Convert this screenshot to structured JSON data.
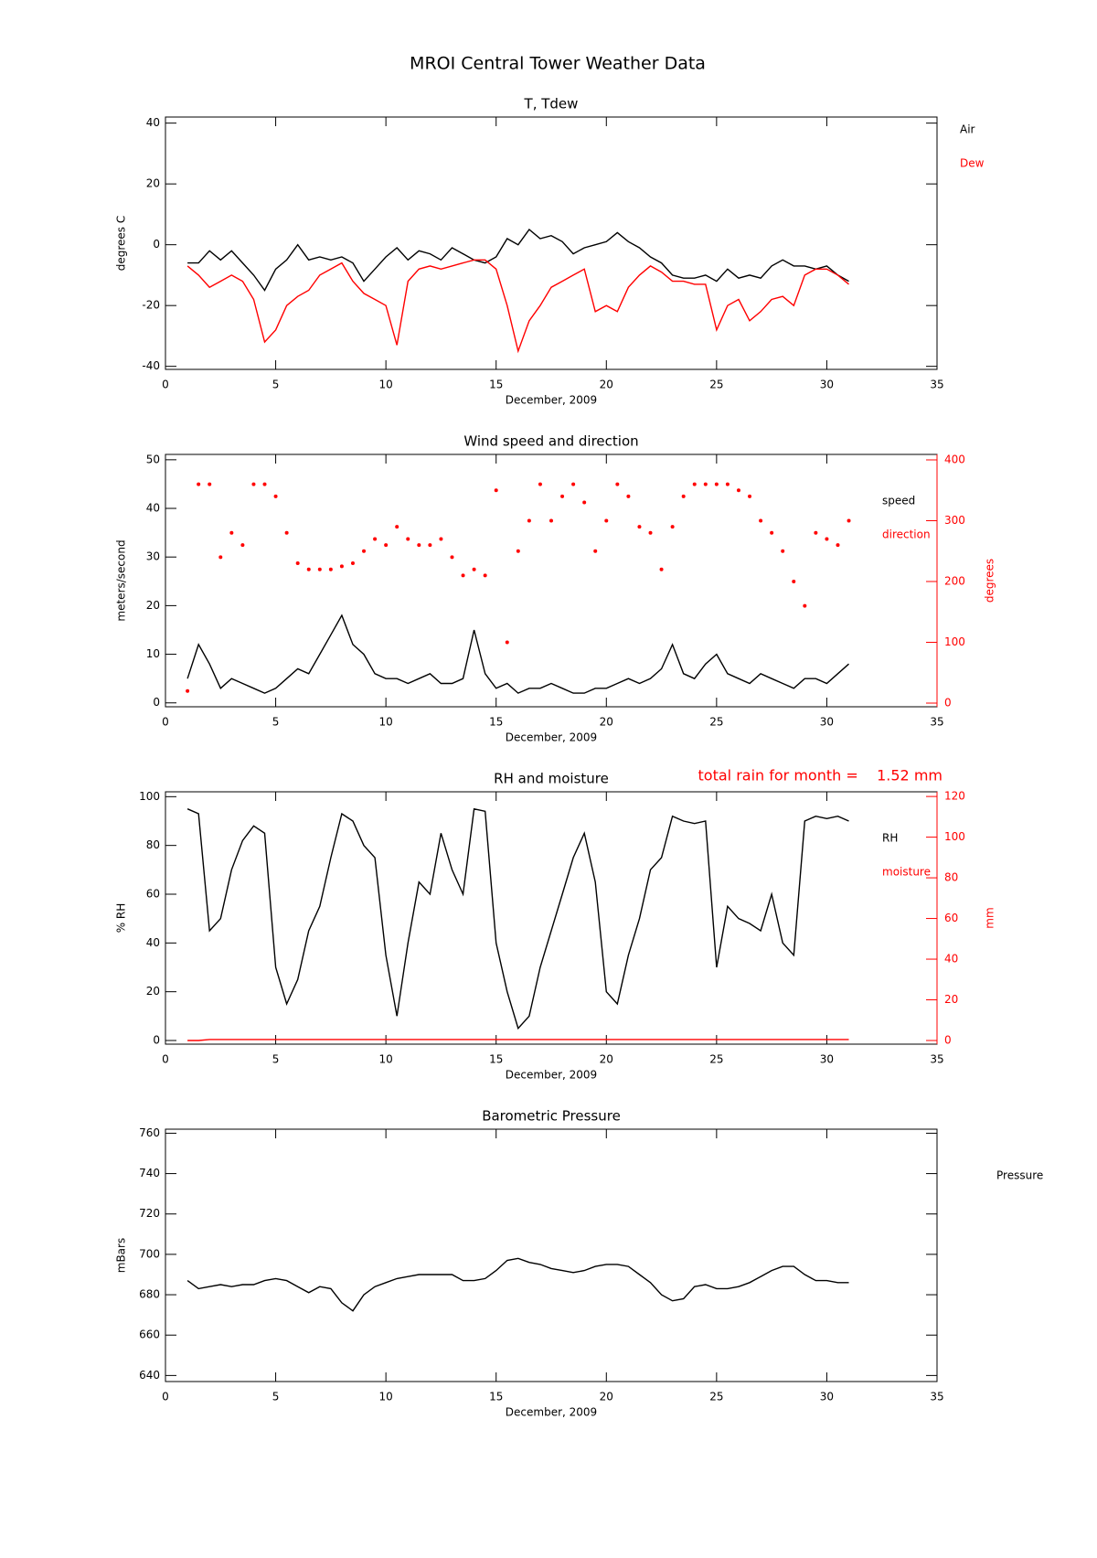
{
  "title": "MROI Central Tower Weather Data",
  "chart_data": [
    {
      "type": "line",
      "title": "T, Tdew",
      "x_label": "December, 2009",
      "y_label": "degrees C",
      "xlim": [
        0,
        35
      ],
      "xticks": [
        0,
        5,
        10,
        15,
        20,
        25,
        30,
        35
      ],
      "ylim": [
        -41,
        42
      ],
      "yticks": [
        -40,
        -20,
        0,
        20,
        40
      ],
      "x": [
        1,
        1.5,
        2,
        2.5,
        3,
        3.5,
        4,
        4.5,
        5,
        5.5,
        6,
        6.5,
        7,
        7.5,
        8,
        8.5,
        9,
        9.5,
        10,
        10.5,
        11,
        11.5,
        12,
        12.5,
        13,
        13.5,
        14,
        14.5,
        15,
        15.5,
        16,
        16.5,
        17,
        17.5,
        18,
        18.5,
        19,
        19.5,
        20,
        20.5,
        21,
        21.5,
        22,
        22.5,
        23,
        23.5,
        24,
        24.5,
        25,
        25.5,
        26,
        26.5,
        27,
        27.5,
        28,
        28.5,
        29,
        29.5,
        30,
        30.5,
        31
      ],
      "series": [
        {
          "name": "Air",
          "color": "#000000",
          "values": [
            -6,
            -6,
            -2,
            -5,
            -2,
            -6,
            -10,
            -15,
            -8,
            -5,
            0,
            -5,
            -4,
            -5,
            -4,
            -6,
            -12,
            -8,
            -4,
            -1,
            -5,
            -2,
            -3,
            -5,
            -1,
            -3,
            -5,
            -6,
            -4,
            2,
            0,
            5,
            2,
            3,
            1,
            -3,
            -1,
            0,
            1,
            4,
            1,
            -1,
            -4,
            -6,
            -10,
            -11,
            -11,
            -10,
            -12,
            -8,
            -11,
            -10,
            -11,
            -7,
            -5,
            -7,
            -7,
            -8,
            -7,
            -10,
            -12
          ]
        },
        {
          "name": "Dew",
          "color": "#ff0000",
          "values": [
            -7,
            -10,
            -14,
            -12,
            -10,
            -12,
            -18,
            -32,
            -28,
            -20,
            -17,
            -15,
            -10,
            -8,
            -6,
            -12,
            -16,
            -18,
            -20,
            -33,
            -12,
            -8,
            -7,
            -8,
            -7,
            -6,
            -5,
            -5,
            -8,
            -20,
            -35,
            -25,
            -20,
            -14,
            -12,
            -10,
            -8,
            -22,
            -20,
            -22,
            -14,
            -10,
            -7,
            -9,
            -12,
            -12,
            -13,
            -13,
            -28,
            -20,
            -18,
            -25,
            -22,
            -18,
            -17,
            -20,
            -10,
            -8,
            -8,
            -10,
            -13
          ]
        }
      ]
    },
    {
      "type": "line",
      "title": "Wind speed and direction",
      "x_label": "December, 2009",
      "y_label": "meters/second",
      "y2_label": "degrees",
      "xlim": [
        0,
        35
      ],
      "xticks": [
        0,
        5,
        10,
        15,
        20,
        25,
        30,
        35
      ],
      "ylim": [
        -0.8,
        51.1
      ],
      "yticks": [
        0,
        10,
        20,
        30,
        40,
        50
      ],
      "y2lim": [
        -6,
        409
      ],
      "y2ticks": [
        0,
        100,
        200,
        300,
        400
      ],
      "x": [
        1,
        1.5,
        2,
        2.5,
        3,
        3.5,
        4,
        4.5,
        5,
        5.5,
        6,
        6.5,
        7,
        7.5,
        8,
        8.5,
        9,
        9.5,
        10,
        10.5,
        11,
        11.5,
        12,
        12.5,
        13,
        13.5,
        14,
        14.5,
        15,
        15.5,
        16,
        16.5,
        17,
        17.5,
        18,
        18.5,
        19,
        19.5,
        20,
        20.5,
        21,
        21.5,
        22,
        22.5,
        23,
        23.5,
        24,
        24.5,
        25,
        25.5,
        26,
        26.5,
        27,
        27.5,
        28,
        28.5,
        29,
        29.5,
        30,
        30.5,
        31
      ],
      "series": [
        {
          "name": "speed",
          "color": "#000000",
          "values": [
            5,
            12,
            8,
            3,
            5,
            4,
            3,
            2,
            3,
            5,
            7,
            6,
            10,
            14,
            18,
            12,
            10,
            6,
            5,
            5,
            4,
            5,
            6,
            4,
            4,
            5,
            15,
            6,
            3,
            4,
            2,
            3,
            3,
            4,
            3,
            2,
            2,
            3,
            3,
            4,
            5,
            4,
            5,
            7,
            12,
            6,
            5,
            8,
            10,
            6,
            5,
            4,
            6,
            5,
            4,
            3,
            5,
            5,
            4,
            6,
            8
          ]
        },
        {
          "name": "direction",
          "color": "#ff0000",
          "axis": "y2",
          "mode": "markers",
          "values": [
            20,
            360,
            360,
            240,
            280,
            260,
            360,
            360,
            340,
            280,
            230,
            220,
            220,
            220,
            225,
            230,
            250,
            270,
            260,
            290,
            270,
            260,
            260,
            270,
            240,
            210,
            220,
            210,
            350,
            100,
            250,
            300,
            360,
            300,
            340,
            360,
            330,
            250,
            300,
            360,
            340,
            290,
            280,
            220,
            290,
            340,
            360,
            360,
            360,
            360,
            350,
            340,
            300,
            280,
            250,
            200,
            160,
            280,
            270,
            260,
            300
          ]
        }
      ]
    },
    {
      "type": "line",
      "title": "RH and moisture",
      "x_label": "December, 2009",
      "y_label": "% RH",
      "y2_label": "mm",
      "annotation": "total rain for month =    1.52 mm",
      "xlim": [
        0,
        35
      ],
      "xticks": [
        0,
        5,
        10,
        15,
        20,
        25,
        30,
        35
      ],
      "ylim": [
        -1.5,
        102
      ],
      "yticks": [
        0,
        20,
        40,
        60,
        80,
        100
      ],
      "y2lim": [
        -1.8,
        122.3
      ],
      "y2ticks": [
        0,
        20,
        40,
        60,
        80,
        100,
        120
      ],
      "x": [
        1,
        1.5,
        2,
        2.5,
        3,
        3.5,
        4,
        4.5,
        5,
        5.5,
        6,
        6.5,
        7,
        7.5,
        8,
        8.5,
        9,
        9.5,
        10,
        10.5,
        11,
        11.5,
        12,
        12.5,
        13,
        13.5,
        14,
        14.5,
        15,
        15.5,
        16,
        16.5,
        17,
        17.5,
        18,
        18.5,
        19,
        19.5,
        20,
        20.5,
        21,
        21.5,
        22,
        22.5,
        23,
        23.5,
        24,
        24.5,
        25,
        25.5,
        26,
        26.5,
        27,
        27.5,
        28,
        28.5,
        29,
        29.5,
        30,
        30.5,
        31
      ],
      "series": [
        {
          "name": "RH",
          "color": "#000000",
          "values": [
            95,
            93,
            45,
            50,
            70,
            82,
            88,
            85,
            30,
            15,
            25,
            45,
            55,
            75,
            93,
            90,
            80,
            75,
            35,
            10,
            40,
            65,
            60,
            85,
            70,
            60,
            95,
            94,
            40,
            20,
            5,
            10,
            30,
            45,
            60,
            75,
            85,
            65,
            20,
            15,
            35,
            50,
            70,
            75,
            92,
            90,
            89,
            90,
            30,
            55,
            50,
            48,
            45,
            60,
            40,
            35,
            90,
            92,
            91,
            92,
            90
          ]
        },
        {
          "name": "moisture",
          "color": "#ff0000",
          "axis": "y2",
          "values": [
            0,
            0,
            0.5,
            0.5,
            0.5,
            0.5,
            0.5,
            0.5,
            0.5,
            0.5,
            0.5,
            0.5,
            0.5,
            0.5,
            0.5,
            0.5,
            0.5,
            0.5,
            0.5,
            0.5,
            0.5,
            0.5,
            0.5,
            0.5,
            0.5,
            0.5,
            0.5,
            0.5,
            0.5,
            0.5,
            0.5,
            0.5,
            0.5,
            0.5,
            0.5,
            0.5,
            0.5,
            0.5,
            0.5,
            0.5,
            0.5,
            0.5,
            0.5,
            0.5,
            0.5,
            0.5,
            0.5,
            0.5,
            0.5,
            0.5,
            0.5,
            0.5,
            0.5,
            0.5,
            0.5,
            0.5,
            0.5,
            0.5,
            0.5,
            0.5,
            0.5
          ]
        }
      ]
    },
    {
      "type": "line",
      "title": "Barometric Pressure",
      "x_label": "December, 2009",
      "y_label": "mBars",
      "xlim": [
        0,
        35
      ],
      "xticks": [
        0,
        5,
        10,
        15,
        20,
        25,
        30,
        35
      ],
      "ylim": [
        637,
        762
      ],
      "yticks": [
        640,
        660,
        680,
        700,
        720,
        740,
        760
      ],
      "x": [
        1,
        1.5,
        2,
        2.5,
        3,
        3.5,
        4,
        4.5,
        5,
        5.5,
        6,
        6.5,
        7,
        7.5,
        8,
        8.5,
        9,
        9.5,
        10,
        10.5,
        11,
        11.5,
        12,
        12.5,
        13,
        13.5,
        14,
        14.5,
        15,
        15.5,
        16,
        16.5,
        17,
        17.5,
        18,
        18.5,
        19,
        19.5,
        20,
        20.5,
        21,
        21.5,
        22,
        22.5,
        23,
        23.5,
        24,
        24.5,
        25,
        25.5,
        26,
        26.5,
        27,
        27.5,
        28,
        28.5,
        29,
        29.5,
        30,
        30.5,
        31
      ],
      "series": [
        {
          "name": "Pressure",
          "color": "#000000",
          "values": [
            687,
            683,
            684,
            685,
            684,
            685,
            685,
            687,
            688,
            687,
            684,
            681,
            684,
            683,
            676,
            672,
            680,
            684,
            686,
            688,
            689,
            690,
            690,
            690,
            690,
            687,
            687,
            688,
            692,
            697,
            698,
            696,
            695,
            693,
            692,
            691,
            692,
            694,
            695,
            695,
            694,
            690,
            686,
            680,
            677,
            678,
            684,
            685,
            683,
            683,
            684,
            686,
            689,
            692,
            694,
            694,
            690,
            687,
            687,
            686,
            686
          ]
        }
      ]
    }
  ]
}
